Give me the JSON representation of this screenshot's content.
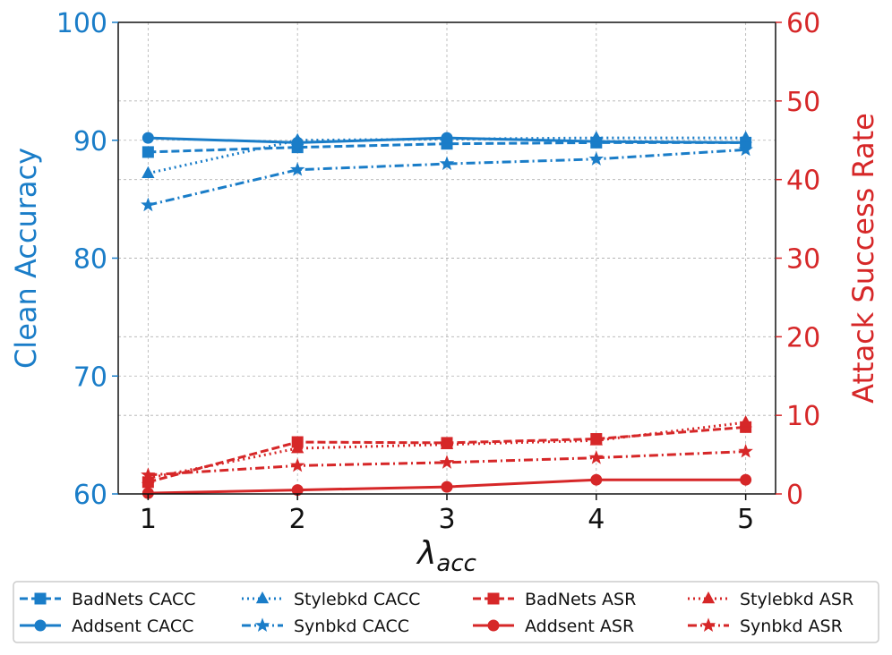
{
  "chart_data": {
    "type": "line",
    "x": [
      1,
      2,
      3,
      4,
      5
    ],
    "xlabel_main": "λ",
    "xlabel_sub": "acc",
    "ylabel_left": "Clean Accuracy",
    "ylabel_right": "Attack Success Rate",
    "ylim_left": [
      60,
      100
    ],
    "ylim_right": [
      0,
      60
    ],
    "yticks_left": [
      "60",
      "70",
      "80",
      "90",
      "100"
    ],
    "yticks_right": [
      "0",
      "10",
      "20",
      "30",
      "40",
      "50",
      "60"
    ],
    "xticks": [
      "1",
      "2",
      "3",
      "4",
      "5"
    ],
    "grid": true,
    "legend_position": "bottom",
    "colors": {
      "cacc": "#1a7dc8",
      "asr": "#d62728"
    },
    "series": [
      {
        "name": "BadNets CACC",
        "axis": "left",
        "style": "dashed",
        "marker": "square",
        "values": [
          89.0,
          89.4,
          89.7,
          89.8,
          89.8
        ]
      },
      {
        "name": "Addsent CACC",
        "axis": "left",
        "style": "solid",
        "marker": "circle",
        "values": [
          90.2,
          89.8,
          90.2,
          89.9,
          89.8
        ]
      },
      {
        "name": "Stylebkd CACC",
        "axis": "left",
        "style": "dotted",
        "marker": "triangle",
        "values": [
          87.2,
          90.0,
          90.1,
          90.2,
          90.2
        ]
      },
      {
        "name": "Synbkd CACC",
        "axis": "left",
        "style": "dashdot",
        "marker": "star",
        "values": [
          84.5,
          87.5,
          88.0,
          88.4,
          89.2
        ]
      },
      {
        "name": "BadNets ASR",
        "axis": "right",
        "style": "dashed",
        "marker": "square",
        "values": [
          1.5,
          6.6,
          6.5,
          7.0,
          8.5
        ]
      },
      {
        "name": "Addsent ASR",
        "axis": "right",
        "style": "solid",
        "marker": "circle",
        "values": [
          0.1,
          0.5,
          0.9,
          1.8,
          1.8
        ]
      },
      {
        "name": "Stylebkd ASR",
        "axis": "right",
        "style": "dotted",
        "marker": "triangle",
        "values": [
          2.0,
          5.8,
          6.3,
          6.8,
          9.1
        ]
      },
      {
        "name": "Synbkd ASR",
        "axis": "right",
        "style": "dashdot",
        "marker": "star",
        "values": [
          2.4,
          3.6,
          4.0,
          4.6,
          5.4
        ]
      }
    ]
  }
}
